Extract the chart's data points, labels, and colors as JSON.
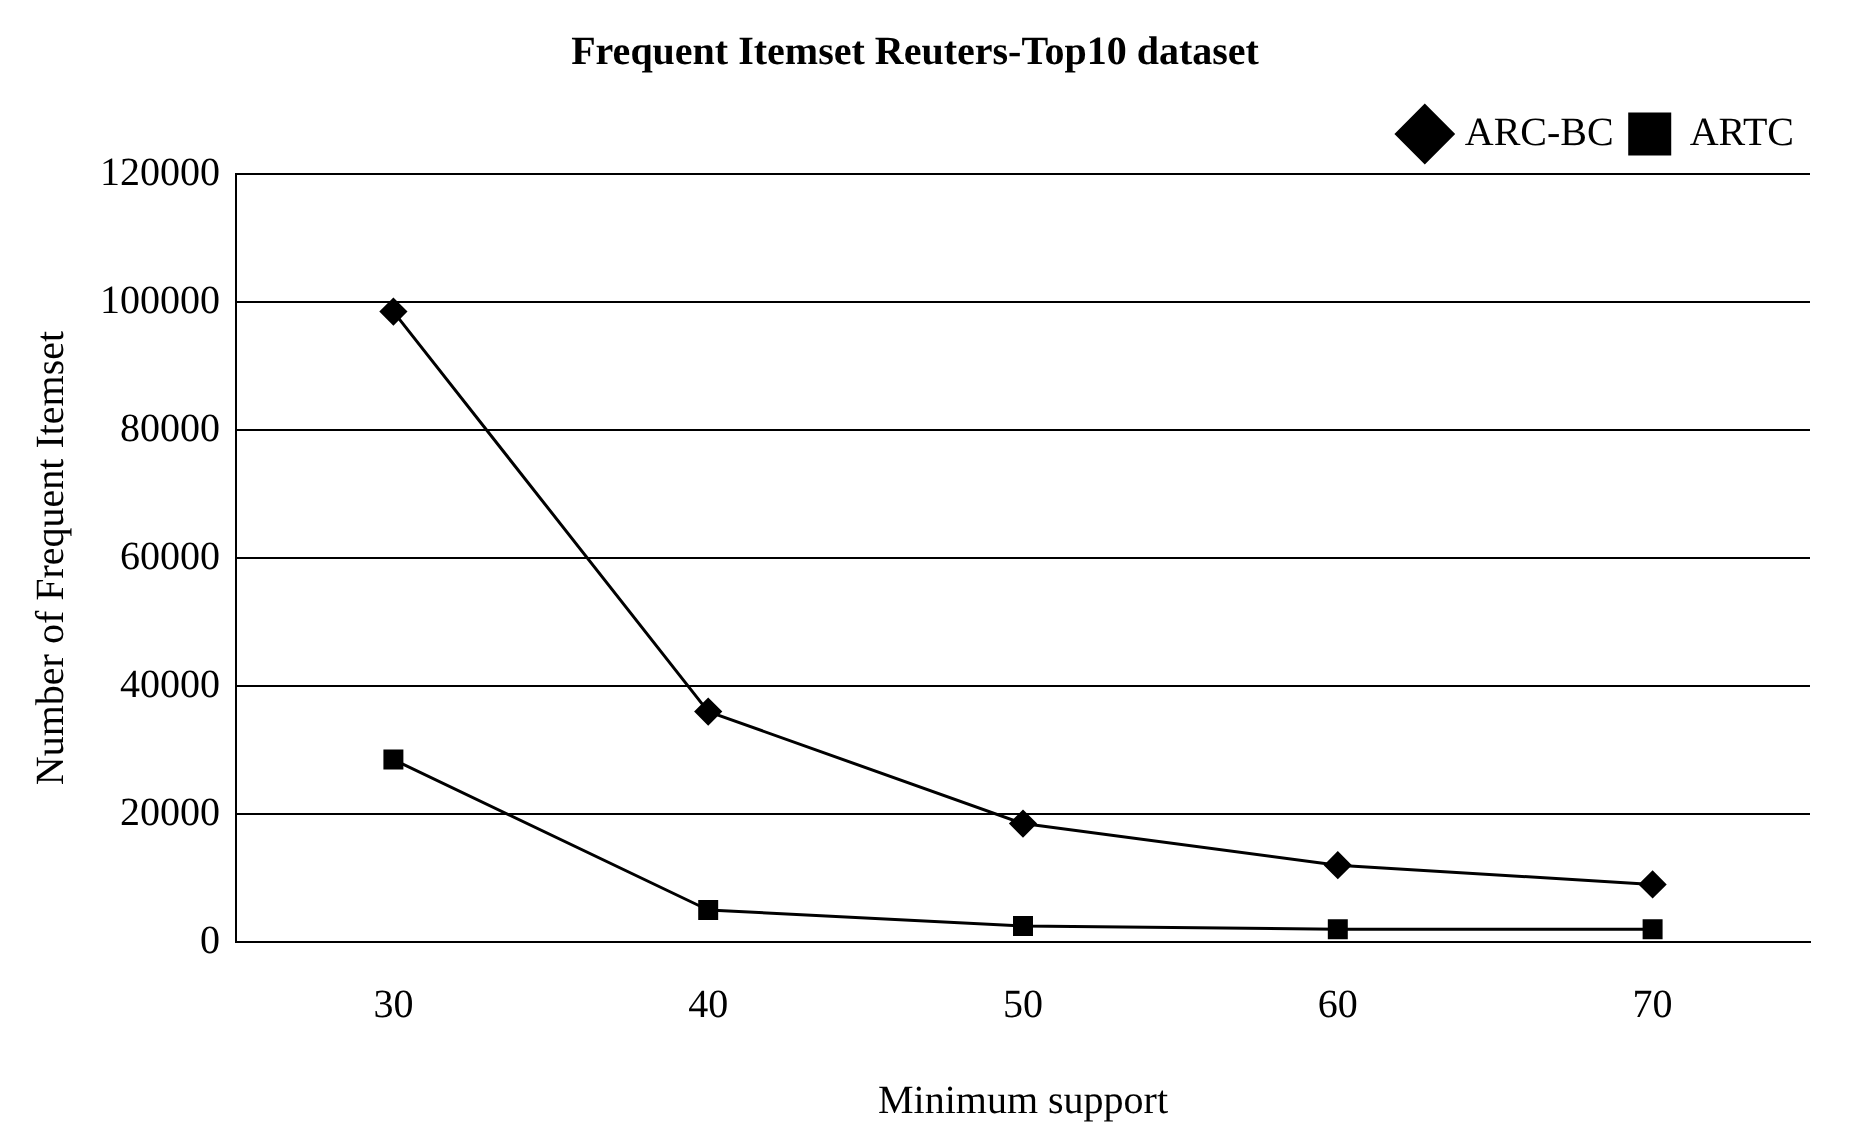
{
  "chart_data": {
    "type": "line",
    "title": "Frequent Itemset Reuters-Top10 dataset",
    "xlabel": "Minimum support",
    "ylabel": "Number of Frequent Itemset",
    "categories": [
      "30",
      "40",
      "50",
      "60",
      "70"
    ],
    "series": [
      {
        "name": "ARC-BC",
        "color": "#000000",
        "marker": "diamond",
        "values": [
          98500,
          36000,
          18500,
          12000,
          9000
        ]
      },
      {
        "name": "ARTC",
        "color": "#000000",
        "marker": "square",
        "values": [
          28500,
          5000,
          2500,
          2000,
          2000
        ]
      }
    ],
    "ylim": [
      0,
      120000
    ],
    "yticks": [
      0,
      20000,
      40000,
      60000,
      80000,
      100000,
      120000
    ],
    "grid": "y",
    "legend": "top right"
  }
}
